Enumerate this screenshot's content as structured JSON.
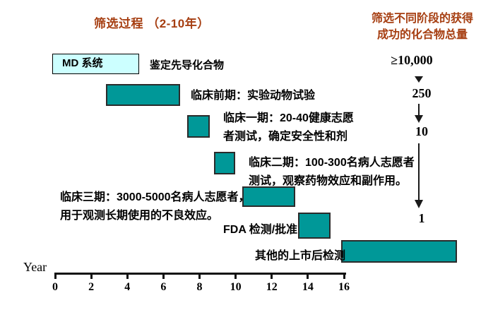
{
  "titles": {
    "process": "筛选过程 （2-10年）",
    "funnel_line1": "筛选不同阶段的获得",
    "funnel_line2": "成功的化合物总量"
  },
  "discovery": {
    "box_label": "MD 系统",
    "caption": "鉴定先导化合物"
  },
  "stages": [
    {
      "id": "preclinical",
      "lines": [
        "临床前期：实验动物试验"
      ]
    },
    {
      "id": "phase1",
      "lines": [
        "临床一期：20-40健康志愿",
        "者测试，确定安全性和剂"
      ]
    },
    {
      "id": "phase2",
      "lines": [
        "临床二期：100-300名病人志愿者",
        "测试，观察药物效应和副作用。"
      ]
    },
    {
      "id": "phase3",
      "lines": [
        "临床三期：3000-5000名病人志愿者，",
        "用于观测长期使用的不良效应。"
      ]
    },
    {
      "id": "fda",
      "lines": [
        "FDA 检测/批准"
      ]
    },
    {
      "id": "postmarket",
      "lines": [
        "其他的上市后检测"
      ]
    }
  ],
  "funnel_counts": [
    "≥10,000",
    "250",
    "10",
    "1"
  ],
  "axis": {
    "label": "Year",
    "ticks": [
      "0",
      "2",
      "4",
      "6",
      "8",
      "10",
      "12",
      "14",
      "16"
    ]
  },
  "colors": {
    "title": "#A63E11",
    "bar_fill": "#009898",
    "md_box_fill": "#CCFFFF"
  },
  "chart_data": {
    "type": "bar",
    "subtype": "gantt-timeline",
    "title": "筛选过程 （2-10年）",
    "right_title": "筛选不同阶段的获得成功的化合物总量",
    "xlabel": "Year",
    "x_range": [
      0,
      16
    ],
    "x_ticks": [
      0,
      2,
      4,
      6,
      8,
      10,
      12,
      14,
      16
    ],
    "bars": [
      {
        "label": "MD 系统（鉴定先导化合物）",
        "start_year": 0.0,
        "end_year": 4.7
      },
      {
        "label": "临床前期：实验动物试验",
        "start_year": 2.8,
        "end_year": 6.9
      },
      {
        "label": "临床一期：20-40健康志愿者测试，确定安全性和剂",
        "start_year": 7.3,
        "end_year": 8.6
      },
      {
        "label": "临床二期：100-300名病人志愿者测试，观察药物效应和副作用。",
        "start_year": 8.8,
        "end_year": 10.0
      },
      {
        "label": "临床三期：3000-5000名病人志愿者，用于观测长期使用的不良效应。",
        "start_year": 10.4,
        "end_year": 13.3
      },
      {
        "label": "FDA 检测/批准",
        "start_year": 13.5,
        "end_year": 15.3
      },
      {
        "label": "其他的上市后检测",
        "start_year": 15.9,
        "end_year": 22.3
      }
    ],
    "funnel": {
      "description": "compounds remaining at each screening stage",
      "values": [
        "≥10,000",
        "250",
        "10",
        "1"
      ]
    }
  }
}
